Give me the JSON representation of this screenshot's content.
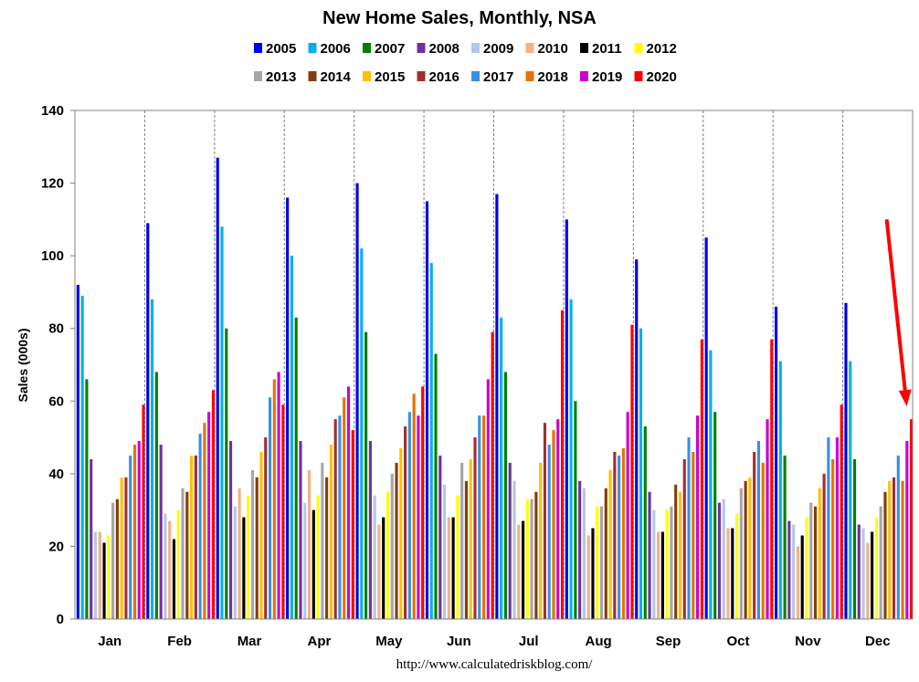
{
  "chart_data": {
    "type": "bar",
    "title": "New Home Sales, Monthly, NSA",
    "xlabel": "",
    "ylabel": "Sales (000s)",
    "ylim": [
      0,
      140
    ],
    "yticks": [
      "0",
      "20",
      "40",
      "60",
      "80",
      "100",
      "120",
      "140"
    ],
    "grid": "vertical dashed separators between months",
    "legend_position": "top",
    "source": "http://www.calculatedriskblog.com/",
    "categories": [
      "Jan",
      "Feb",
      "Mar",
      "Apr",
      "May",
      "Jun",
      "Jul",
      "Aug",
      "Sep",
      "Oct",
      "Nov",
      "Dec"
    ],
    "annotation": "red arrow pointing to Dec 2020 bar",
    "series": [
      {
        "name": "2005",
        "color": "#0000e6",
        "values": [
          92,
          109,
          127,
          116,
          120,
          115,
          117,
          110,
          99,
          105,
          86,
          87
        ]
      },
      {
        "name": "2006",
        "color": "#00b0f0",
        "values": [
          89,
          88,
          108,
          100,
          102,
          98,
          83,
          88,
          80,
          74,
          71,
          71
        ]
      },
      {
        "name": "2007",
        "color": "#008000",
        "values": [
          66,
          68,
          80,
          83,
          79,
          73,
          68,
          60,
          53,
          57,
          45,
          44
        ]
      },
      {
        "name": "2008",
        "color": "#7030a0",
        "values": [
          44,
          48,
          49,
          49,
          49,
          45,
          43,
          38,
          35,
          32,
          27,
          26
        ]
      },
      {
        "name": "2009",
        "color": "#b4c7e7",
        "values": [
          24,
          29,
          31,
          32,
          34,
          37,
          38,
          36,
          30,
          33,
          26,
          25
        ]
      },
      {
        "name": "2010",
        "color": "#f4b183",
        "values": [
          24,
          27,
          36,
          41,
          26,
          28,
          26,
          23,
          24,
          25,
          20,
          21
        ]
      },
      {
        "name": "2011",
        "color": "#000000",
        "values": [
          21,
          22,
          28,
          30,
          28,
          28,
          27,
          25,
          24,
          25,
          23,
          24
        ]
      },
      {
        "name": "2012",
        "color": "#ffff00",
        "values": [
          23,
          30,
          34,
          34,
          35,
          34,
          33,
          31,
          30,
          29,
          28,
          28
        ]
      },
      {
        "name": "2013",
        "color": "#a6a6a6",
        "values": [
          32,
          36,
          41,
          43,
          40,
          43,
          33,
          31,
          31,
          36,
          32,
          31
        ]
      },
      {
        "name": "2014",
        "color": "#843c0c",
        "values": [
          33,
          35,
          39,
          39,
          43,
          38,
          35,
          36,
          37,
          38,
          31,
          35
        ]
      },
      {
        "name": "2015",
        "color": "#ffc000",
        "values": [
          39,
          45,
          46,
          48,
          47,
          44,
          43,
          41,
          35,
          39,
          36,
          38
        ]
      },
      {
        "name": "2016",
        "color": "#a0302d",
        "values": [
          39,
          45,
          50,
          55,
          53,
          50,
          54,
          46,
          44,
          46,
          40,
          39
        ]
      },
      {
        "name": "2017",
        "color": "#3a8fe5",
        "values": [
          45,
          51,
          61,
          56,
          57,
          56,
          48,
          45,
          50,
          49,
          50,
          45
        ]
      },
      {
        "name": "2018",
        "color": "#e57300",
        "values": [
          48,
          54,
          66,
          61,
          62,
          56,
          52,
          47,
          46,
          43,
          44,
          38
        ]
      },
      {
        "name": "2019",
        "color": "#cc00cc",
        "values": [
          49,
          57,
          68,
          64,
          56,
          66,
          55,
          57,
          56,
          55,
          50,
          49
        ]
      },
      {
        "name": "2020",
        "color": "#ff0000",
        "values": [
          59,
          63,
          59,
          52,
          64,
          79,
          85,
          81,
          77,
          77,
          59,
          55
        ]
      }
    ]
  }
}
